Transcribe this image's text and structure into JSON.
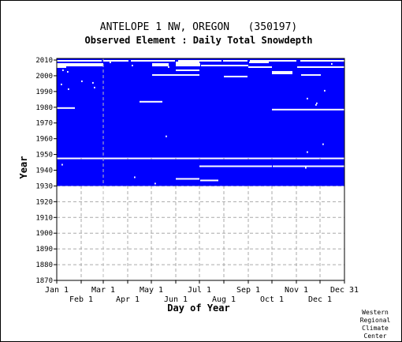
{
  "chart_data": {
    "type": "heatmap",
    "title": "ANTELOPE 1 NW, OREGON   (350197)",
    "subtitle": "Observed Element : Daily Total Snowdepth",
    "xlabel": "Day of Year",
    "ylabel": "Year",
    "ylim": [
      1870,
      2011
    ],
    "xlim": [
      1,
      366
    ],
    "yticks": [
      1870,
      1880,
      1890,
      1900,
      1910,
      1920,
      1930,
      1940,
      1950,
      1960,
      1970,
      1980,
      1990,
      2000,
      2010
    ],
    "xticks_upper": [
      {
        "label": "Jan 1",
        "day": 1
      },
      {
        "label": "Mar 1",
        "day": 60
      },
      {
        "label": "May 1",
        "day": 121
      },
      {
        "label": "Jul 1",
        "day": 182
      },
      {
        "label": "Sep 1",
        "day": 244
      },
      {
        "label": "Nov 1",
        "day": 305
      },
      {
        "label": "Dec 31",
        "day": 366
      }
    ],
    "xticks_lower": [
      {
        "label": "Feb 1",
        "day": 32
      },
      {
        "label": "Apr 1",
        "day": 91
      },
      {
        "label": "Jun 1",
        "day": 152
      },
      {
        "label": "Aug 1",
        "day": 213
      },
      {
        "label": "Oct 1",
        "day": 274
      },
      {
        "label": "Dec 1",
        "day": 335
      }
    ],
    "grid": true,
    "data_color": "#0000ff",
    "observed_blocks": [
      {
        "from_year": 1930,
        "to_year": 1946
      },
      {
        "from_year": 1948,
        "to_year": 2010
      }
    ],
    "missing_segments": [
      {
        "year": 2009,
        "start_day": 1,
        "end_day": 58
      },
      {
        "year": 2009,
        "start_day": 60,
        "end_day": 92
      },
      {
        "year": 2009,
        "start_day": 95,
        "end_day": 151
      },
      {
        "year": 2009,
        "start_day": 155,
        "end_day": 210
      },
      {
        "year": 2009,
        "start_day": 212,
        "end_day": 243
      },
      {
        "year": 2009,
        "start_day": 246,
        "end_day": 305
      },
      {
        "year": 2009,
        "start_day": 310,
        "end_day": 366
      },
      {
        "year": 2008,
        "start_day": 152,
        "end_day": 182
      },
      {
        "year": 2008,
        "start_day": 245,
        "end_day": 270
      },
      {
        "year": 2007,
        "start_day": 1,
        "end_day": 60
      },
      {
        "year": 2007,
        "start_day": 122,
        "end_day": 143
      },
      {
        "year": 2007,
        "start_day": 152,
        "end_day": 183
      },
      {
        "year": 2006,
        "start_day": 1,
        "end_day": 60
      },
      {
        "year": 2006,
        "start_day": 122,
        "end_day": 143
      },
      {
        "year": 2006,
        "start_day": 152,
        "end_day": 183
      },
      {
        "year": 2006,
        "start_day": 184,
        "end_day": 244
      },
      {
        "year": 2005,
        "start_day": 1,
        "end_day": 13
      },
      {
        "year": 2005,
        "start_day": 244,
        "end_day": 274
      },
      {
        "year": 2005,
        "start_day": 306,
        "end_day": 366
      },
      {
        "year": 2003,
        "start_day": 152,
        "end_day": 182
      },
      {
        "year": 2002,
        "start_day": 274,
        "end_day": 300
      },
      {
        "year": 2001,
        "start_day": 274,
        "end_day": 300
      },
      {
        "year": 2000,
        "start_day": 122,
        "end_day": 182
      },
      {
        "year": 2000,
        "start_day": 311,
        "end_day": 336
      },
      {
        "year": 1999,
        "start_day": 213,
        "end_day": 243
      },
      {
        "year": 1983,
        "start_day": 106,
        "end_day": 135
      },
      {
        "year": 1979,
        "start_day": 1,
        "end_day": 24
      },
      {
        "year": 1978,
        "start_day": 274,
        "end_day": 366
      },
      {
        "year": 1934,
        "start_day": 152,
        "end_day": 182
      },
      {
        "year": 1933,
        "start_day": 183,
        "end_day": 206
      },
      {
        "year": 1942,
        "start_day": 182,
        "end_day": 274
      },
      {
        "year": 1942,
        "start_day": 275,
        "end_day": 366
      }
    ],
    "missing_points": [
      {
        "year": 2008,
        "day": 68
      },
      {
        "year": 2007,
        "day": 349
      },
      {
        "year": 2006,
        "day": 96
      },
      {
        "year": 2005,
        "day": 142
      },
      {
        "year": 2003,
        "day": 8
      },
      {
        "year": 2002,
        "day": 14
      },
      {
        "year": 1996,
        "day": 32
      },
      {
        "year": 1995,
        "day": 46
      },
      {
        "year": 1994,
        "day": 6
      },
      {
        "year": 1992,
        "day": 48
      },
      {
        "year": 1991,
        "day": 15
      },
      {
        "year": 1990,
        "day": 340
      },
      {
        "year": 1985,
        "day": 318
      },
      {
        "year": 1982,
        "day": 330
      },
      {
        "year": 1981,
        "day": 329
      },
      {
        "year": 1961,
        "day": 139
      },
      {
        "year": 1956,
        "day": 338
      },
      {
        "year": 1951,
        "day": 318
      },
      {
        "year": 1943,
        "day": 7
      },
      {
        "year": 1941,
        "day": 316
      },
      {
        "year": 1935,
        "day": 99
      },
      {
        "year": 1931,
        "day": 125
      }
    ]
  },
  "credit": [
    "Western",
    "Regional",
    "Climate",
    "Center"
  ]
}
